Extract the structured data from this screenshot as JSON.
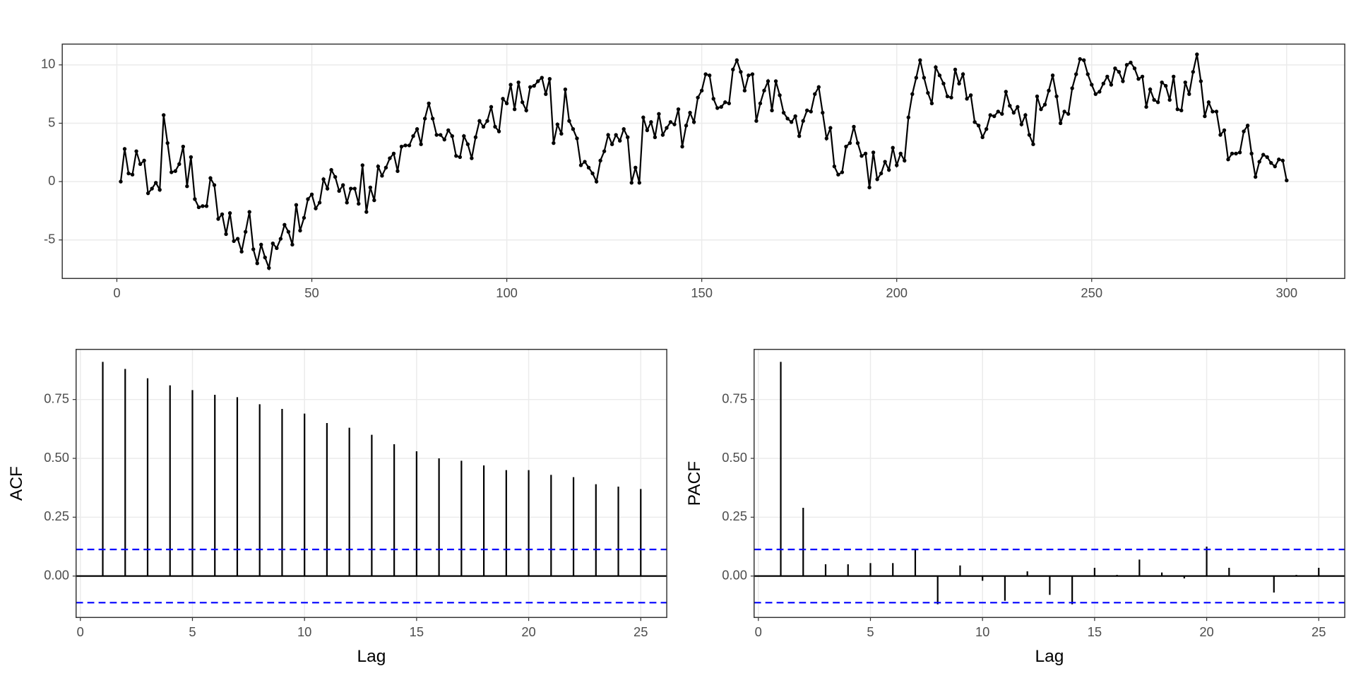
{
  "chart_data": [
    {
      "type": "line",
      "color": "#000000",
      "grid": true,
      "x": [
        1,
        2,
        3,
        4,
        5,
        6,
        7,
        8,
        9,
        10,
        11,
        12,
        13,
        14,
        15,
        16,
        17,
        18,
        19,
        20,
        21,
        22,
        23,
        24,
        25,
        26,
        27,
        28,
        29,
        30,
        31,
        32,
        33,
        34,
        35,
        36,
        37,
        38,
        39,
        40,
        41,
        42,
        43,
        44,
        45,
        46,
        47,
        48,
        49,
        50,
        51,
        52,
        53,
        54,
        55,
        56,
        57,
        58,
        59,
        60,
        61,
        62,
        63,
        64,
        65,
        66,
        67,
        68,
        69,
        70,
        71,
        72,
        73,
        74,
        75,
        76,
        77,
        78,
        79,
        80,
        81,
        82,
        83,
        84,
        85,
        86,
        87,
        88,
        89,
        90,
        91,
        92,
        93,
        94,
        95,
        96,
        97,
        98,
        99,
        100,
        101,
        102,
        103,
        104,
        105,
        106,
        107,
        108,
        109,
        110,
        111,
        112,
        113,
        114,
        115,
        116,
        117,
        118,
        119,
        120,
        121,
        122,
        123,
        124,
        125,
        126,
        127,
        128,
        129,
        130,
        131,
        132,
        133,
        134,
        135,
        136,
        137,
        138,
        139,
        140,
        141,
        142,
        143,
        144,
        145,
        146,
        147,
        148,
        149,
        150,
        151,
        152,
        153,
        154,
        155,
        156,
        157,
        158,
        159,
        160,
        161,
        162,
        163,
        164,
        165,
        166,
        167,
        168,
        169,
        170,
        171,
        172,
        173,
        174,
        175,
        176,
        177,
        178,
        179,
        180,
        181,
        182,
        183,
        184,
        185,
        186,
        187,
        188,
        189,
        190,
        191,
        192,
        193,
        194,
        195,
        196,
        197,
        198,
        199,
        200,
        201,
        202,
        203,
        204,
        205,
        206,
        207,
        208,
        209,
        210,
        211,
        212,
        213,
        214,
        215,
        216,
        217,
        218,
        219,
        220,
        221,
        222,
        223,
        224,
        225,
        226,
        227,
        228,
        229,
        230,
        231,
        232,
        233,
        234,
        235,
        236,
        237,
        238,
        239,
        240,
        241,
        242,
        243,
        244,
        245,
        246,
        247,
        248,
        249,
        250,
        251,
        252,
        253,
        254,
        255,
        256,
        257,
        258,
        259,
        260,
        261,
        262,
        263,
        264,
        265,
        266,
        267,
        268,
        269,
        270,
        271,
        272,
        273,
        274,
        275,
        276,
        277,
        278,
        279,
        280,
        281,
        282,
        283,
        284,
        285,
        286,
        287,
        288,
        289,
        290,
        291,
        292,
        293,
        294,
        295,
        296,
        297,
        298,
        299,
        300
      ],
      "values": [
        0,
        2.8,
        0.7,
        0.6,
        2.6,
        1.5,
        1.8,
        -1.0,
        -0.6,
        -0.1,
        -0.7,
        5.7,
        3.3,
        0.8,
        0.9,
        1.5,
        3.0,
        -0.4,
        2.1,
        -1.5,
        -2.2,
        -2.1,
        -2.1,
        0.3,
        -0.3,
        -3.2,
        -2.8,
        -4.5,
        -2.7,
        -5.1,
        -4.9,
        -6.0,
        -4.3,
        -2.6,
        -5.8,
        -7.0,
        -5.4,
        -6.5,
        -7.4,
        -5.3,
        -5.7,
        -4.9,
        -3.7,
        -4.3,
        -5.4,
        -2.0,
        -4.2,
        -3.1,
        -1.5,
        -1.1,
        -2.3,
        -1.8,
        0.2,
        -0.6,
        1.0,
        0.4,
        -0.8,
        -0.3,
        -1.8,
        -0.6,
        -0.6,
        -1.9,
        1.4,
        -2.6,
        -0.5,
        -1.6,
        1.3,
        0.5,
        1.2,
        2.0,
        2.4,
        0.9,
        3.0,
        3.1,
        3.1,
        3.9,
        4.5,
        3.2,
        5.4,
        6.7,
        5.4,
        4.0,
        4.0,
        3.6,
        4.4,
        3.9,
        2.2,
        2.1,
        3.9,
        3.2,
        2.0,
        3.8,
        5.2,
        4.7,
        5.2,
        6.4,
        4.7,
        4.3,
        7.1,
        6.7,
        8.3,
        6.2,
        8.5,
        6.8,
        6.1,
        8.1,
        8.2,
        8.6,
        8.9,
        7.5,
        8.8,
        3.3,
        4.9,
        4.1,
        7.9,
        5.2,
        4.5,
        3.7,
        1.4,
        1.7,
        1.2,
        0.7,
        0.0,
        1.8,
        2.6,
        4.0,
        3.2,
        4.0,
        3.5,
        4.5,
        3.8,
        -0.1,
        1.2,
        -0.1,
        5.5,
        4.4,
        5.1,
        3.8,
        5.8,
        4.0,
        4.6,
        5.1,
        4.9,
        6.2,
        3.0,
        4.8,
        5.9,
        5.1,
        7.2,
        7.8,
        9.2,
        9.1,
        7.1,
        6.3,
        6.4,
        6.8,
        6.7,
        9.6,
        10.4,
        9.4,
        7.8,
        9.1,
        9.2,
        5.2,
        6.7,
        7.8,
        8.6,
        6.1,
        8.6,
        7.4,
        5.9,
        5.4,
        5.1,
        5.6,
        3.9,
        5.2,
        6.1,
        6.0,
        7.5,
        8.1,
        5.9,
        3.7,
        4.6,
        1.3,
        0.6,
        0.8,
        3.0,
        3.3,
        4.7,
        3.3,
        2.2,
        2.4,
        -0.5,
        2.5,
        0.2,
        0.7,
        1.7,
        1.0,
        2.9,
        1.4,
        2.4,
        1.8,
        5.5,
        7.5,
        8.9,
        10.4,
        8.9,
        7.6,
        6.7,
        9.8,
        9.1,
        8.4,
        7.3,
        7.2,
        9.6,
        8.4,
        9.2,
        7.1,
        7.4,
        5.1,
        4.8,
        3.8,
        4.5,
        5.7,
        5.6,
        6.0,
        5.8,
        7.7,
        6.5,
        5.9,
        6.4,
        4.9,
        5.7,
        4.0,
        3.2,
        7.3,
        6.2,
        6.6,
        7.8,
        9.1,
        7.3,
        5.0,
        6.0,
        5.8,
        8.0,
        9.2,
        10.5,
        10.4,
        9.2,
        8.3,
        7.5,
        7.7,
        8.4,
        9.0,
        8.3,
        9.7,
        9.4,
        8.6,
        10.0,
        10.2,
        9.7,
        8.8,
        9.0,
        6.4,
        7.9,
        7.0,
        6.8,
        8.5,
        8.2,
        7.0,
        9.0,
        6.2,
        6.1,
        8.5,
        7.5,
        9.4,
        10.9,
        8.6,
        5.6,
        6.8,
        6.0,
        6.0,
        4.0,
        4.4,
        1.9,
        2.4,
        2.4,
        2.5,
        4.3,
        4.8,
        2.4,
        0.4,
        1.7,
        2.3,
        2.1,
        1.6,
        1.3,
        1.9,
        1.8,
        0.1
      ],
      "xlim": [
        -14,
        314.9
      ],
      "xticks": [
        0,
        50,
        100,
        150,
        200,
        250,
        300
      ],
      "ylim": [
        -8.3,
        11.78
      ],
      "yticks": [
        -5,
        0,
        5,
        10
      ]
    },
    {
      "type": "stem",
      "color": "#000000",
      "ci_color": "#0000ff",
      "grid": true,
      "xlabel": "Lag",
      "ylabel": "ACF",
      "ci": 0.113,
      "x": [
        1,
        2,
        3,
        4,
        5,
        6,
        7,
        8,
        9,
        10,
        11,
        12,
        13,
        14,
        15,
        16,
        17,
        18,
        19,
        20,
        21,
        22,
        23,
        24,
        25
      ],
      "values": [
        0.91,
        0.88,
        0.84,
        0.81,
        0.79,
        0.77,
        0.76,
        0.73,
        0.71,
        0.69,
        0.65,
        0.63,
        0.6,
        0.56,
        0.53,
        0.5,
        0.49,
        0.47,
        0.45,
        0.45,
        0.43,
        0.42,
        0.39,
        0.38,
        0.37
      ],
      "xlim": [
        -0.19,
        26.16
      ],
      "xticks": [
        0,
        5,
        10,
        15,
        20,
        25
      ],
      "ylim": [
        -0.176,
        0.963
      ],
      "yticks": [
        {
          "value": 0,
          "label": "0.00"
        },
        0.25,
        {
          "value": 0.5,
          "label": "0.50"
        },
        0.75
      ]
    },
    {
      "type": "stem",
      "color": "#000000",
      "ci_color": "#0000ff",
      "grid": true,
      "xlabel": "Lag",
      "ylabel": "PACF",
      "ci": 0.113,
      "x": [
        1,
        2,
        3,
        4,
        5,
        6,
        7,
        8,
        9,
        10,
        11,
        12,
        13,
        14,
        15,
        16,
        17,
        18,
        19,
        20,
        21,
        22,
        23,
        24,
        25
      ],
      "values": [
        0.91,
        0.29,
        0.05,
        0.05,
        0.055,
        0.055,
        0.11,
        -0.12,
        0.045,
        -0.02,
        -0.105,
        0.02,
        -0.08,
        -0.12,
        0.035,
        0.005,
        0.07,
        0.015,
        -0.01,
        0.125,
        0.035,
        0.002,
        -0.07,
        0.005,
        0.035
      ],
      "xlim": [
        -0.19,
        26.16
      ],
      "xticks": [
        0,
        5,
        10,
        15,
        20,
        25
      ],
      "ylim": [
        -0.176,
        0.963
      ],
      "yticks": [
        {
          "value": 0,
          "label": "0.00"
        },
        0.25,
        {
          "value": 0.5,
          "label": "0.50"
        },
        0.75
      ]
    }
  ]
}
